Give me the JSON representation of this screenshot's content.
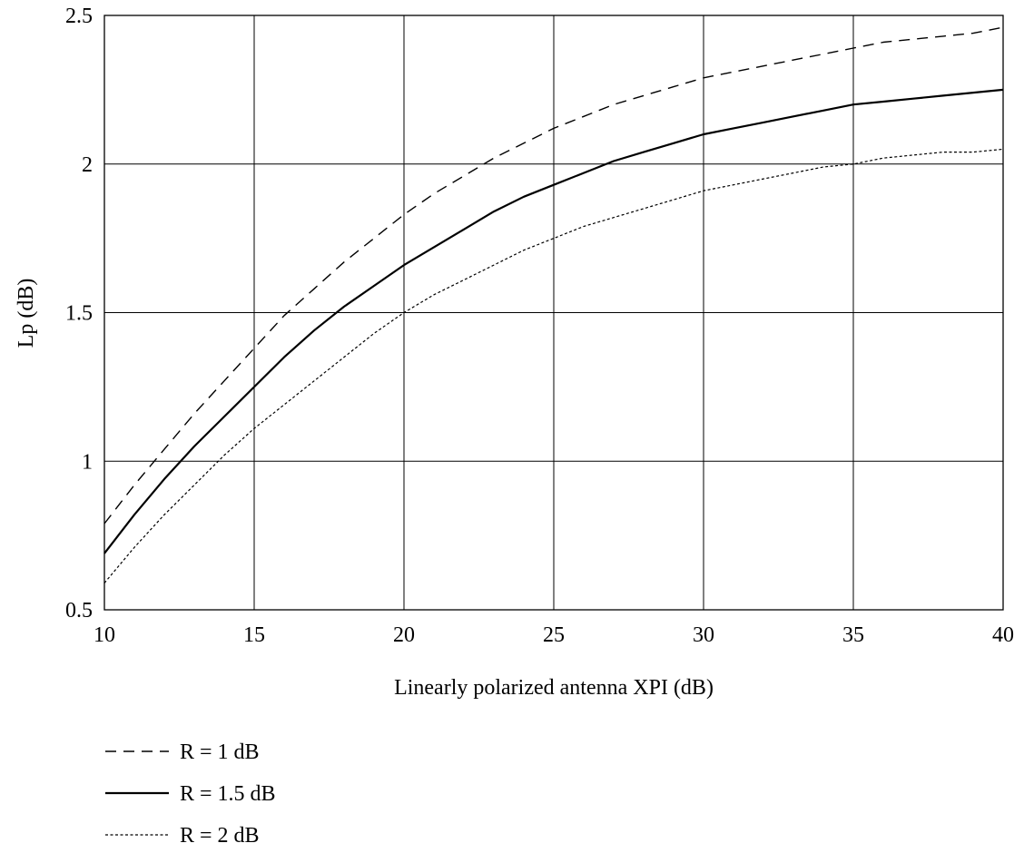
{
  "chart_data": {
    "type": "line",
    "title": "",
    "xlabel": "Linearly polarized antenna XPI (dB)",
    "ylabel": "Lp (dB)",
    "xlim": [
      10,
      40
    ],
    "ylim": [
      0.5,
      2.5
    ],
    "xticks": [
      10,
      15,
      20,
      25,
      30,
      35,
      40
    ],
    "yticks": [
      0.5,
      1,
      1.5,
      2,
      2.5
    ],
    "xtick_labels": [
      "10",
      "15",
      "20",
      "25",
      "30",
      "35",
      "40"
    ],
    "ytick_labels": [
      "0.5",
      "1",
      "1.5",
      "2",
      "2.5"
    ],
    "grid": true,
    "legend_position": "below",
    "series": [
      {
        "name": "R = 1 dB",
        "line_style": "dashed",
        "x": [
          10,
          11,
          12,
          13,
          14,
          15,
          16,
          17,
          18,
          19,
          20,
          21,
          22,
          23,
          24,
          25,
          26,
          27,
          28,
          29,
          30,
          31,
          32,
          33,
          34,
          35,
          36,
          37,
          38,
          39,
          40
        ],
        "y": [
          0.79,
          0.92,
          1.04,
          1.16,
          1.27,
          1.38,
          1.49,
          1.58,
          1.67,
          1.75,
          1.83,
          1.9,
          1.96,
          2.02,
          2.07,
          2.12,
          2.16,
          2.2,
          2.23,
          2.26,
          2.29,
          2.31,
          2.33,
          2.35,
          2.37,
          2.39,
          2.41,
          2.42,
          2.43,
          2.44,
          2.46
        ]
      },
      {
        "name": "R = 1.5 dB",
        "line_style": "solid",
        "x": [
          10,
          11,
          12,
          13,
          14,
          15,
          16,
          17,
          18,
          19,
          20,
          21,
          22,
          23,
          24,
          25,
          26,
          27,
          28,
          29,
          30,
          31,
          32,
          33,
          34,
          35,
          36,
          37,
          38,
          39,
          40
        ],
        "y": [
          0.69,
          0.82,
          0.94,
          1.05,
          1.15,
          1.25,
          1.35,
          1.44,
          1.52,
          1.59,
          1.66,
          1.72,
          1.78,
          1.84,
          1.89,
          1.93,
          1.97,
          2.01,
          2.04,
          2.07,
          2.1,
          2.12,
          2.14,
          2.16,
          2.18,
          2.2,
          2.21,
          2.22,
          2.23,
          2.24,
          2.25
        ]
      },
      {
        "name": "R = 2 dB",
        "line_style": "dotted",
        "x": [
          10,
          11,
          12,
          13,
          14,
          15,
          16,
          17,
          18,
          19,
          20,
          21,
          22,
          23,
          24,
          25,
          26,
          27,
          28,
          29,
          30,
          31,
          32,
          33,
          34,
          35,
          36,
          37,
          38,
          39,
          40
        ],
        "y": [
          0.59,
          0.71,
          0.82,
          0.92,
          1.02,
          1.11,
          1.19,
          1.27,
          1.35,
          1.43,
          1.5,
          1.56,
          1.61,
          1.66,
          1.71,
          1.75,
          1.79,
          1.82,
          1.85,
          1.88,
          1.91,
          1.93,
          1.95,
          1.97,
          1.99,
          2.0,
          2.02,
          2.03,
          2.04,
          2.04,
          2.05
        ]
      }
    ]
  }
}
